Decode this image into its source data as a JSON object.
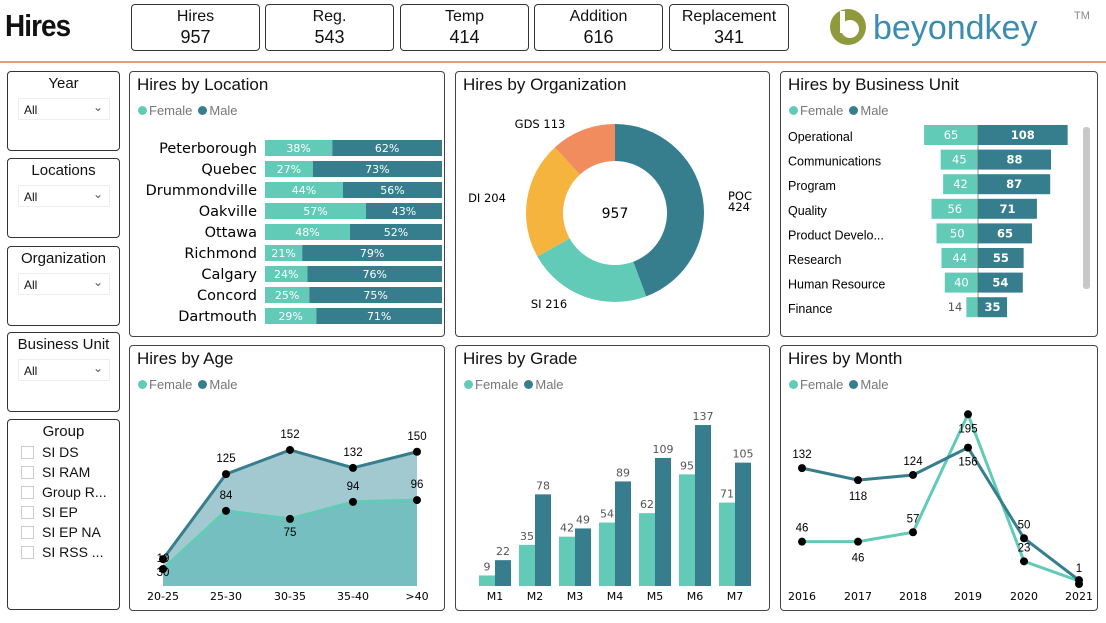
{
  "header": {
    "title": "Hires",
    "kpis": [
      {
        "label": "Hires",
        "value": "957"
      },
      {
        "label": "Reg.",
        "value": "543"
      },
      {
        "label": "Temp",
        "value": "414"
      },
      {
        "label": "Addition",
        "value": "616"
      },
      {
        "label": "Replacement",
        "value": "341"
      }
    ],
    "logo_text": "beyondkey",
    "logo_tm": "TM"
  },
  "colors": {
    "female": "#61cbb7",
    "male": "#367e8e",
    "accent_rule": "#e0a07a",
    "org": [
      "#367e8e",
      "#61cbb7",
      "#f5b43e",
      "#f08c5e"
    ]
  },
  "slicers": [
    {
      "title": "Year",
      "value": "All",
      "icon": "chevron-down-icon"
    },
    {
      "title": "Locations",
      "value": "All",
      "icon": "chevron-down-icon"
    },
    {
      "title": "Organization",
      "value": "All",
      "icon": "chevron-down-icon"
    },
    {
      "title": "Business Unit",
      "value": "All",
      "icon": "chevron-down-icon"
    }
  ],
  "group_slicer": {
    "title": "Group",
    "items": [
      "SI DS",
      "SI RAM",
      "Group R...",
      "SI EP",
      "SI EP NA",
      "SI RSS ..."
    ]
  },
  "legend": {
    "female": "Female",
    "male": "Male"
  },
  "chart_data": [
    {
      "type": "bar",
      "stacked": "100%",
      "orientation": "horizontal",
      "title": "Hires by Location",
      "categories": [
        "Peterborough",
        "Quebec",
        "Drummondville",
        "Oakville",
        "Ottawa",
        "Richmond",
        "Calgary",
        "Concord",
        "Dartmouth"
      ],
      "series": [
        {
          "name": "Female",
          "values": [
            38,
            27,
            44,
            57,
            48,
            21,
            24,
            25,
            29
          ]
        },
        {
          "name": "Male",
          "values": [
            62,
            73,
            56,
            43,
            52,
            79,
            76,
            75,
            71
          ]
        }
      ],
      "legend": "top-left"
    },
    {
      "type": "pie",
      "donut": true,
      "title": "Hires by Organization",
      "center_label": "957",
      "categories": [
        "POC",
        "SI",
        "DI",
        "GDS"
      ],
      "values": [
        424,
        216,
        204,
        113
      ]
    },
    {
      "type": "bar",
      "orientation": "horizontal",
      "diverging": true,
      "title": "Hires by Business Unit",
      "categories": [
        "Operational",
        "Communications",
        "Program",
        "Quality",
        "Product Develo...",
        "Research",
        "Human Resource",
        "Finance"
      ],
      "series": [
        {
          "name": "Female",
          "values": [
            65,
            45,
            42,
            56,
            50,
            44,
            40,
            14
          ]
        },
        {
          "name": "Male",
          "values": [
            108,
            88,
            87,
            71,
            65,
            55,
            54,
            35
          ]
        }
      ],
      "legend": "top-left"
    },
    {
      "type": "area",
      "title": "Hires by Age",
      "categories": [
        "20-25",
        "25-30",
        "30-35",
        "35-40",
        ">40"
      ],
      "series": [
        {
          "name": "Female",
          "values": [
            19,
            84,
            75,
            94,
            96
          ]
        },
        {
          "name": "Male",
          "values": [
            30,
            125,
            152,
            132,
            150
          ]
        }
      ],
      "legend": "top-left"
    },
    {
      "type": "bar",
      "title": "Hires by Grade",
      "categories": [
        "M1",
        "M2",
        "M3",
        "M4",
        "M5",
        "M6",
        "M7"
      ],
      "series": [
        {
          "name": "Female",
          "values": [
            9,
            35,
            42,
            54,
            62,
            95,
            71
          ]
        },
        {
          "name": "Male",
          "values": [
            22,
            78,
            49,
            89,
            109,
            137,
            105
          ]
        }
      ],
      "legend": "top-left"
    },
    {
      "type": "line",
      "title": "Hires by Month",
      "categories": [
        "2016",
        "2017",
        "2018",
        "2019",
        "2020",
        "2021"
      ],
      "series": [
        {
          "name": "Female",
          "values": [
            46,
            46,
            57,
            195,
            23,
            null
          ]
        },
        {
          "name": "Male",
          "values": [
            132,
            118,
            124,
            156,
            50,
            1
          ]
        }
      ],
      "legend": "top-left"
    }
  ]
}
